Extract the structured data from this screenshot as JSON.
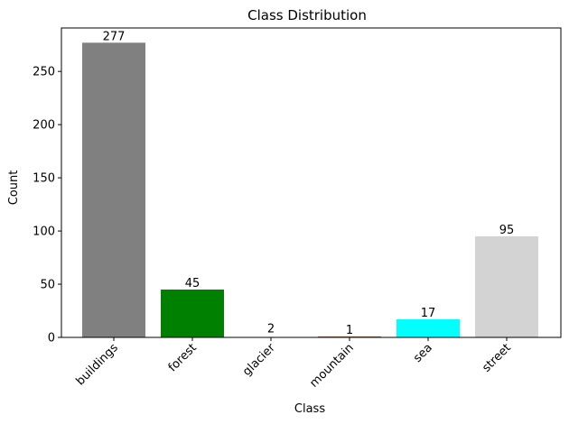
{
  "chart_data": {
    "type": "bar",
    "title": "Class Distribution",
    "xlabel": "Class",
    "ylabel": "Count",
    "categories": [
      "buildings",
      "forest",
      "glacier",
      "mountain",
      "sea",
      "street"
    ],
    "values": [
      277,
      45,
      2,
      1,
      17,
      95
    ],
    "value_labels": [
      "277",
      "45",
      "2",
      "1",
      "17",
      "95"
    ],
    "colors": [
      "#808080",
      "#008000",
      "#ffffff",
      "#d2691e",
      "#00ffff",
      "#d3d3d3"
    ],
    "ylim": [
      0,
      290.85
    ],
    "yticks": [
      0,
      50,
      100,
      150,
      200,
      250
    ],
    "ytick_labels": [
      "0",
      "50",
      "100",
      "150",
      "200",
      "250"
    ],
    "grid": false,
    "legend": "none",
    "xtick_rotation": "45"
  }
}
